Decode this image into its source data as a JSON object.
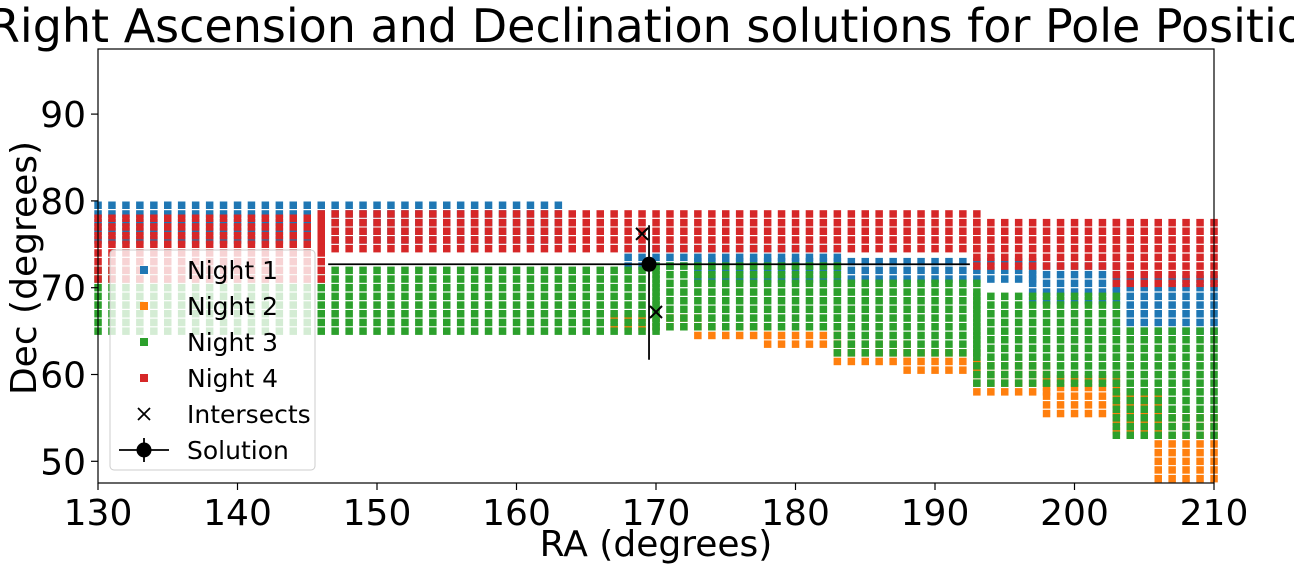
{
  "chart_data": {
    "type": "scatter",
    "title": "Right Ascension and Declination solutions for Pole Position",
    "xlabel": "RA (degrees)",
    "ylabel": "Dec (degrees)",
    "xlim": [
      130,
      210
    ],
    "ylim": [
      47.5,
      97.5
    ],
    "xticks": [
      "130",
      "140",
      "150",
      "160",
      "170",
      "180",
      "190",
      "200",
      "210"
    ],
    "yticks": [
      "50",
      "60",
      "70",
      "80",
      "90"
    ],
    "grid": false,
    "legend_position": "lower-left",
    "series": [
      {
        "name": "Night 1",
        "color": "#1f77b4",
        "marker": "square",
        "bands": [
          {
            "ra": [
              130,
              163
            ],
            "dec": [
              75.5,
              80.2
            ]
          },
          {
            "ra": [
              168,
              183
            ],
            "dec": [
              72.5,
              74.5
            ]
          },
          {
            "ra": [
              173,
              197
            ],
            "dec": [
              71,
              73.5
            ]
          },
          {
            "ra": [
              197,
              203
            ],
            "dec": [
              68.5,
              72.5
            ]
          },
          {
            "ra": [
              203,
              210
            ],
            "dec": [
              65,
              71
            ]
          }
        ]
      },
      {
        "name": "Night 2",
        "color": "#ff7f0e",
        "marker": "square",
        "bands": [
          {
            "ra": [
              167,
              173
            ],
            "dec": [
              65.5,
              66.5
            ]
          },
          {
            "ra": [
              173,
              178
            ],
            "dec": [
              64.5,
              65.5
            ]
          },
          {
            "ra": [
              178,
              183
            ],
            "dec": [
              63.5,
              64.5
            ]
          },
          {
            "ra": [
              183,
              188
            ],
            "dec": [
              61.5,
              63.5
            ]
          },
          {
            "ra": [
              188,
              193
            ],
            "dec": [
              60.5,
              62.5
            ]
          },
          {
            "ra": [
              193,
              198
            ],
            "dec": [
              58,
              61.5
            ]
          },
          {
            "ra": [
              198,
              203
            ],
            "dec": [
              55.5,
              59.5
            ]
          },
          {
            "ra": [
              203,
              206
            ],
            "dec": [
              53.5,
              57.5
            ]
          },
          {
            "ra": [
              206,
              210
            ],
            "dec": [
              48,
              55
            ]
          }
        ]
      },
      {
        "name": "Night 3",
        "color": "#2ca02c",
        "marker": "square",
        "bands": [
          {
            "ra": [
              130,
              170
            ],
            "dec": [
              65,
              72.5
            ]
          },
          {
            "ra": [
              170,
              183
            ],
            "dec": [
              65.5,
              72.5
            ]
          },
          {
            "ra": [
              183,
              193
            ],
            "dec": [
              62.5,
              70.5
            ]
          },
          {
            "ra": [
              193,
              203
            ],
            "dec": [
              59,
              69.5
            ]
          },
          {
            "ra": [
              203,
              210
            ],
            "dec": [
              53,
              65
            ]
          }
        ]
      },
      {
        "name": "Night 4",
        "color": "#d62728",
        "marker": "square",
        "bands": [
          {
            "ra": [
              130,
              146
            ],
            "dec": [
              71,
              78
            ]
          },
          {
            "ra": [
              146,
              157
            ],
            "dec": [
              74.5,
              78.5
            ]
          },
          {
            "ra": [
              157,
              193
            ],
            "dec": [
              74.5,
              79.2
            ]
          },
          {
            "ra": [
              193,
              203
            ],
            "dec": [
              72.5,
              78.2
            ]
          },
          {
            "ra": [
              203,
              210
            ],
            "dec": [
              70.5,
              77.5
            ]
          }
        ]
      },
      {
        "name": "Intersects",
        "color": "#000000",
        "marker": "x",
        "points": [
          {
            "ra": 169,
            "dec": 76.2
          },
          {
            "ra": 170,
            "dec": 67.2
          }
        ]
      },
      {
        "name": "Solution",
        "color": "#000000",
        "marker": "circle",
        "points": [
          {
            "ra": 169.5,
            "dec": 72.7,
            "ra_err": 23,
            "dec_err": [
              11,
              4.5
            ]
          }
        ]
      }
    ]
  }
}
